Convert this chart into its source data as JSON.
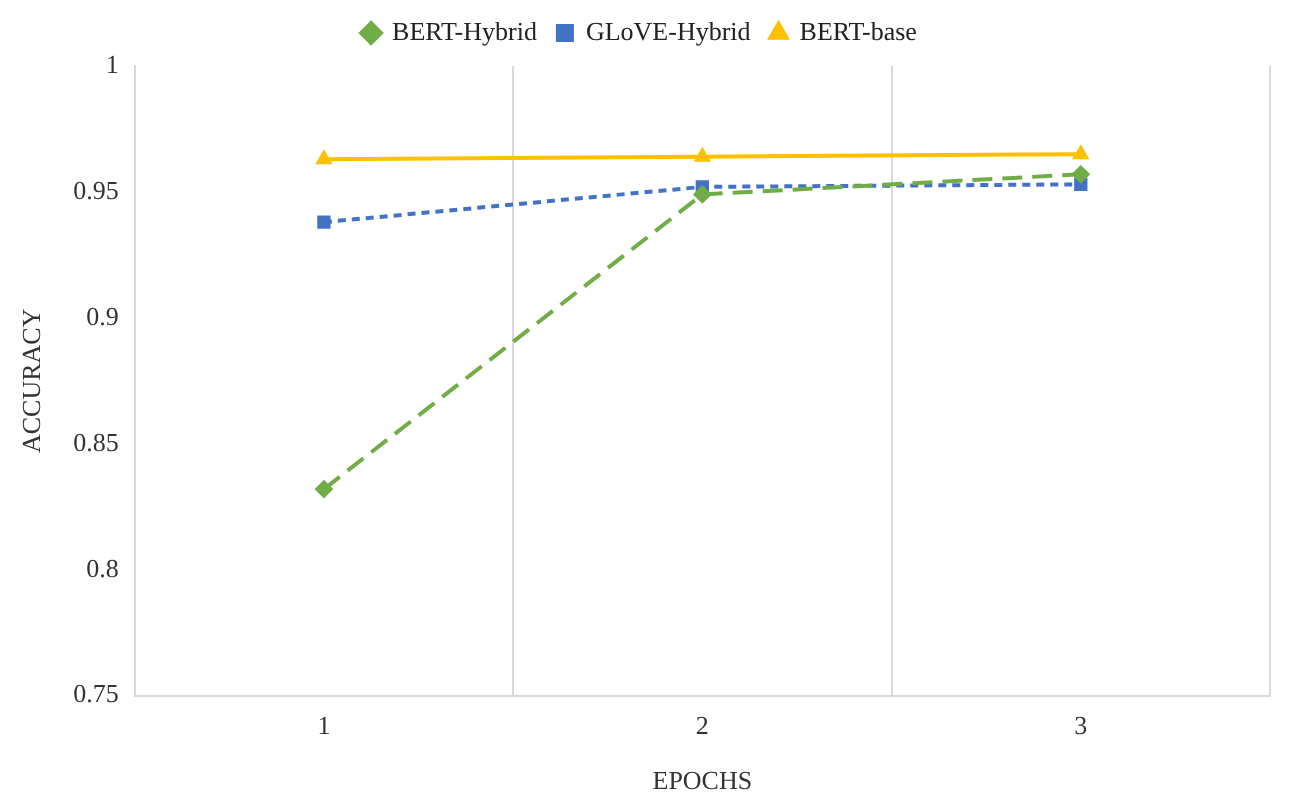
{
  "chart_data": {
    "type": "line",
    "xlabel": "EPOCHS",
    "ylabel": "ACCURACY",
    "categories": [
      "1",
      "2",
      "3"
    ],
    "ylim": [
      0.75,
      1
    ],
    "yticks": [
      0.75,
      0.8,
      0.85,
      0.9,
      0.95,
      1
    ],
    "grid": "x",
    "legend": "top",
    "series": [
      {
        "name": "BERT-Hybrid",
        "color": "#70ad47",
        "values": [
          0.832,
          0.949,
          0.957
        ],
        "marker": "diamond",
        "line_style": "dashed"
      },
      {
        "name": "GLoVE-Hybrid",
        "color": "#4472c4",
        "values": [
          0.938,
          0.952,
          0.953
        ],
        "marker": "square",
        "line_style": "dotted"
      },
      {
        "name": "BERT-base",
        "color": "#ffc000",
        "values": [
          0.963,
          0.964,
          0.965
        ],
        "marker": "triangle",
        "line_style": "solid"
      }
    ]
  }
}
